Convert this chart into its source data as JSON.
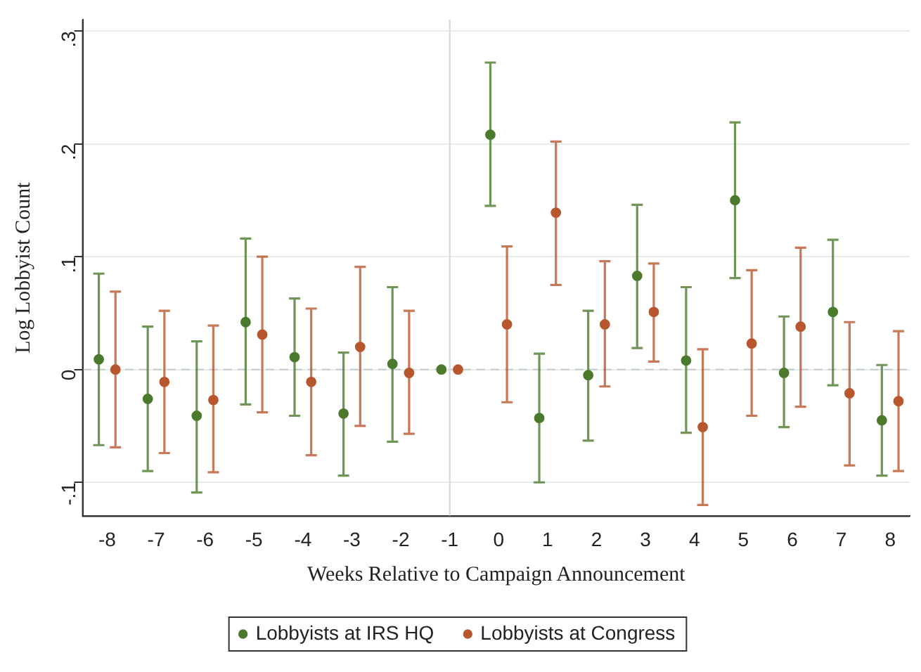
{
  "chart_data": {
    "type": "scatter",
    "xlabel": "Weeks Relative to Campaign Announcement",
    "ylabel": "Log Lobbyist Count",
    "xlim": [
      -8.5,
      8.4
    ],
    "xticks": [
      -8,
      -7,
      -6,
      -5,
      -4,
      -3,
      -2,
      -1,
      0,
      1,
      2,
      3,
      4,
      5,
      6,
      7,
      8
    ],
    "ylim": [
      -0.13,
      0.31
    ],
    "yticks": [
      {
        "value": -0.1,
        "label": "-.1"
      },
      {
        "value": 0,
        "label": "0"
      },
      {
        "value": 0.1,
        "label": ".1"
      },
      {
        "value": 0.2,
        "label": ".2"
      },
      {
        "value": 0.3,
        "label": ".3"
      }
    ],
    "grid": "y",
    "legend": "bottom",
    "marker": "circle",
    "ref_lines": [
      {
        "axis": "y",
        "value": 0,
        "color": "#c8d0d0",
        "line_style": "dashed"
      },
      {
        "axis": "x",
        "value": -1,
        "color": "#d8dcdc",
        "line_style": "solid"
      }
    ],
    "series": [
      {
        "name": "Lobbyists at IRS HQ",
        "color": "#4b7a2d",
        "x": [
          -8.17,
          -7.17,
          -6.17,
          -5.17,
          -4.17,
          -3.17,
          -2.17,
          -1.17,
          -0.17,
          0.83,
          1.83,
          2.83,
          3.83,
          4.83,
          5.83,
          6.83,
          7.83
        ],
        "values": [
          0.009,
          -0.026,
          -0.041,
          0.042,
          0.011,
          -0.039,
          0.005,
          0,
          0.208,
          -0.043,
          -0.005,
          0.083,
          0.008,
          0.15,
          -0.003,
          0.051,
          -0.045
        ],
        "errors": [
          [
            -0.067,
            0.085
          ],
          [
            -0.09,
            0.038
          ],
          [
            -0.109,
            0.025
          ],
          [
            -0.031,
            0.116
          ],
          [
            -0.041,
            0.063
          ],
          [
            -0.094,
            0.015
          ],
          [
            -0.064,
            0.073
          ],
          null,
          [
            0.145,
            0.272
          ],
          [
            -0.1,
            0.014
          ],
          [
            -0.063,
            0.052
          ],
          [
            0.019,
            0.146
          ],
          [
            -0.056,
            0.073
          ],
          [
            0.081,
            0.219
          ],
          [
            -0.051,
            0.047
          ],
          [
            -0.014,
            0.115
          ],
          [
            -0.094,
            0.004
          ]
        ]
      },
      {
        "name": "Lobbyists at Congress",
        "color": "#b8562e",
        "x": [
          -7.83,
          -6.83,
          -5.83,
          -4.83,
          -3.83,
          -2.83,
          -1.83,
          -0.83,
          0.17,
          1.17,
          2.17,
          3.17,
          4.17,
          5.17,
          6.17,
          7.17,
          8.17
        ],
        "values": [
          0,
          -0.011,
          -0.027,
          0.031,
          -0.011,
          0.02,
          -0.003,
          0,
          0.04,
          0.139,
          0.04,
          0.051,
          -0.051,
          0.023,
          0.038,
          -0.021,
          -0.028
        ],
        "errors": [
          [
            -0.069,
            0.069
          ],
          [
            -0.074,
            0.052
          ],
          [
            -0.091,
            0.039
          ],
          [
            -0.038,
            0.1
          ],
          [
            -0.076,
            0.054
          ],
          [
            -0.05,
            0.091
          ],
          [
            -0.057,
            0.052
          ],
          null,
          [
            -0.029,
            0.109
          ],
          [
            0.075,
            0.202
          ],
          [
            -0.015,
            0.096
          ],
          [
            0.007,
            0.094
          ],
          [
            -0.12,
            0.018
          ],
          [
            -0.041,
            0.088
          ],
          [
            -0.033,
            0.108
          ],
          [
            -0.085,
            0.042
          ],
          [
            -0.09,
            0.034
          ]
        ]
      }
    ]
  }
}
